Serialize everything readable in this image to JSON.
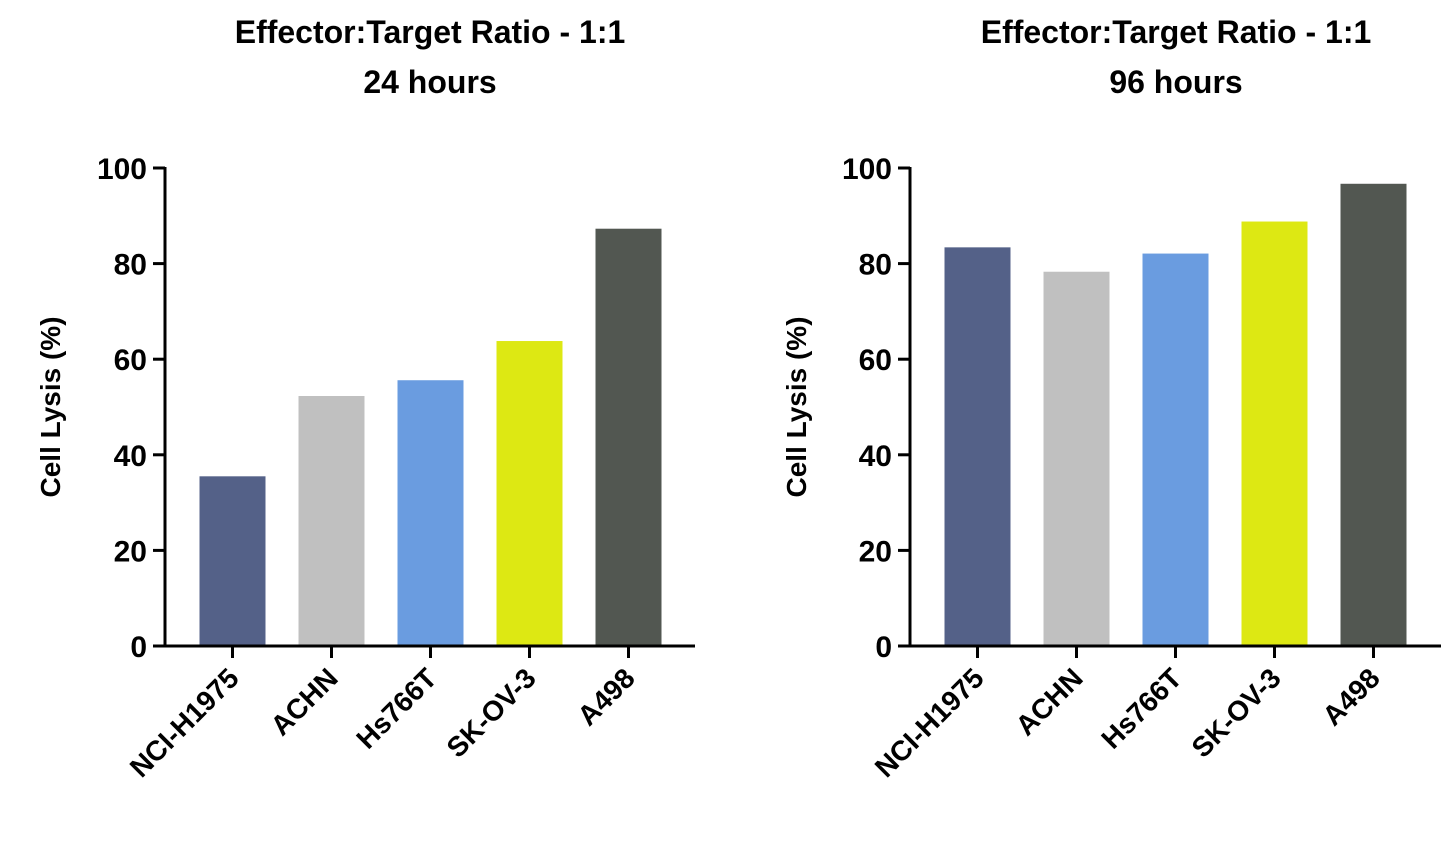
{
  "chart_data": [
    {
      "type": "bar",
      "title": [
        "Effector:Target Ratio - 1:1",
        "24 hours"
      ],
      "ylabel": "Cell Lysis (%)",
      "xlabel": "",
      "ylim": [
        0,
        100
      ],
      "yticks": [
        0,
        20,
        40,
        60,
        80,
        100
      ],
      "yticks_text": [
        "0",
        "20",
        "40",
        "60",
        "80",
        "100"
      ],
      "categories": [
        "NCI-H1975",
        "ACHN",
        "Hs766T",
        "SK-OV-3",
        "A498"
      ],
      "values": [
        35.5,
        52.3,
        55.6,
        63.8,
        87.3
      ],
      "colors": [
        "#546188",
        "#c0c0c0",
        "#6a9ce0",
        "#dde813",
        "#525751"
      ],
      "grid": false,
      "legend": "none"
    },
    {
      "type": "bar",
      "title": [
        "Effector:Target Ratio - 1:1",
        "96 hours"
      ],
      "ylabel": "Cell Lysis (%)",
      "xlabel": "",
      "ylim": [
        0,
        100
      ],
      "yticks": [
        0,
        20,
        40,
        60,
        80,
        100
      ],
      "yticks_text": [
        "0",
        "20",
        "40",
        "60",
        "80",
        "100"
      ],
      "categories": [
        "NCI-H1975",
        "ACHN",
        "Hs766T",
        "SK-OV-3",
        "A498"
      ],
      "values": [
        83.4,
        78.3,
        82.1,
        88.8,
        96.7
      ],
      "colors": [
        "#546188",
        "#c0c0c0",
        "#6a9ce0",
        "#dde813",
        "#525751"
      ],
      "grid": false,
      "legend": "none"
    }
  ]
}
